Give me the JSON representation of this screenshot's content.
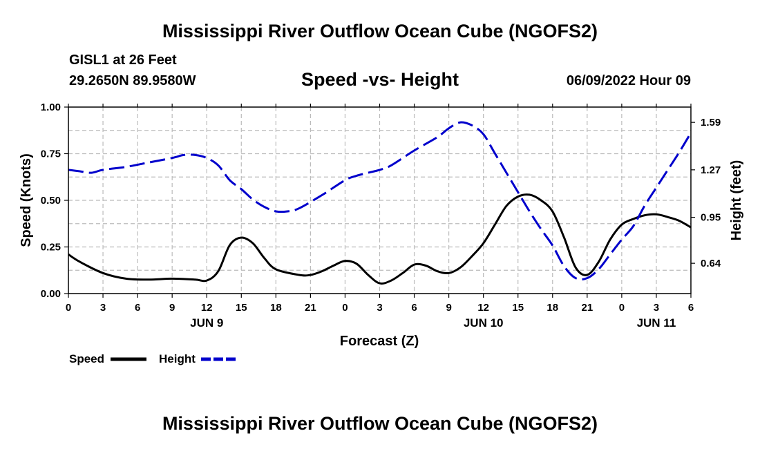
{
  "page": {
    "title": "Mississippi River Outflow Ocean Cube (NGOFS2)",
    "footer_title": "Mississippi River Outflow Ocean Cube (NGOFS2)",
    "station": "GISL1 at 26 Feet",
    "coords": "29.2650N  89.9580W",
    "subtitle": "Speed -vs- Height",
    "datetime": "06/09/2022 Hour 09"
  },
  "chart_data": {
    "type": "line",
    "title": "Speed -vs- Height",
    "xlabel": "Forecast (Z)",
    "ylabel": "Speed (Knots)",
    "y2label": "Height (feet)",
    "x_range": [
      0,
      54
    ],
    "x_ticks": [
      0,
      3,
      6,
      9,
      12,
      15,
      18,
      21,
      24,
      27,
      30,
      33,
      36,
      39,
      42,
      45,
      48,
      51,
      54
    ],
    "x_tick_labels": [
      "0",
      "3",
      "6",
      "9",
      "12",
      "15",
      "18",
      "21",
      "0",
      "3",
      "6",
      "9",
      "12",
      "15",
      "18",
      "21",
      "0",
      "3",
      "6"
    ],
    "day_labels": [
      {
        "x": 12,
        "label": "JUN 9"
      },
      {
        "x": 36,
        "label": "JUN 10"
      },
      {
        "x": 51,
        "label": "JUN 11"
      }
    ],
    "ylim": [
      0,
      1.0
    ],
    "y_ticks": [
      0,
      0.25,
      0.5,
      0.75,
      1.0
    ],
    "y_tick_labels": [
      "0.00",
      "0.25",
      "0.50",
      "0.75",
      "1.00"
    ],
    "y2lim": [
      0.4357,
      1.6931
    ],
    "y2_ticks": [
      0.64,
      0.95,
      1.27,
      1.59
    ],
    "y2_tick_labels": [
      "0.64",
      "0.95",
      "1.27",
      "1.59"
    ],
    "grid": true,
    "legend": [
      {
        "name": "Speed",
        "color": "#000000",
        "style": "solid"
      },
      {
        "name": "Height",
        "color": "#0000cc",
        "style": "dashed"
      }
    ],
    "series": [
      {
        "name": "Speed",
        "axis": "left",
        "color": "#000000",
        "style": "solid",
        "x": [
          0,
          1,
          3,
          5,
          7,
          9,
          11,
          12,
          13,
          14,
          15,
          16,
          17,
          18,
          20,
          21,
          22,
          23,
          24,
          25,
          26,
          27,
          28,
          29,
          30,
          31,
          32,
          33,
          34,
          35,
          36,
          37,
          38,
          39,
          40,
          41,
          42,
          43,
          44,
          45,
          46,
          47,
          48,
          49,
          50,
          51,
          52,
          53,
          54
        ],
        "values": [
          0.21,
          0.17,
          0.11,
          0.08,
          0.075,
          0.08,
          0.075,
          0.07,
          0.12,
          0.26,
          0.3,
          0.27,
          0.19,
          0.13,
          0.1,
          0.1,
          0.12,
          0.15,
          0.175,
          0.16,
          0.1,
          0.055,
          0.07,
          0.11,
          0.155,
          0.15,
          0.12,
          0.11,
          0.14,
          0.2,
          0.27,
          0.37,
          0.47,
          0.52,
          0.53,
          0.5,
          0.44,
          0.3,
          0.14,
          0.1,
          0.17,
          0.29,
          0.37,
          0.4,
          0.42,
          0.425,
          0.41,
          0.39,
          0.355
        ]
      },
      {
        "name": "Height",
        "axis": "right",
        "color": "#0000cc",
        "style": "dashed",
        "x": [
          0,
          1,
          2,
          3,
          5,
          7,
          9,
          10,
          11,
          12,
          13,
          14,
          15,
          16,
          17,
          18,
          19,
          20,
          22,
          24,
          25,
          26,
          27,
          28,
          30,
          32,
          33,
          34,
          35,
          36,
          37,
          38,
          39,
          40,
          41,
          42,
          43,
          44,
          45,
          46,
          47,
          48,
          49,
          50,
          51,
          52,
          53,
          54
        ],
        "values": [
          1.27,
          1.26,
          1.25,
          1.27,
          1.29,
          1.32,
          1.35,
          1.37,
          1.37,
          1.35,
          1.3,
          1.2,
          1.14,
          1.07,
          1.02,
          0.99,
          0.99,
          1.01,
          1.1,
          1.2,
          1.23,
          1.25,
          1.27,
          1.3,
          1.4,
          1.49,
          1.55,
          1.59,
          1.57,
          1.51,
          1.38,
          1.25,
          1.12,
          0.99,
          0.87,
          0.76,
          0.62,
          0.54,
          0.54,
          0.6,
          0.7,
          0.8,
          0.89,
          1.03,
          1.15,
          1.27,
          1.39,
          1.52
        ]
      }
    ]
  }
}
